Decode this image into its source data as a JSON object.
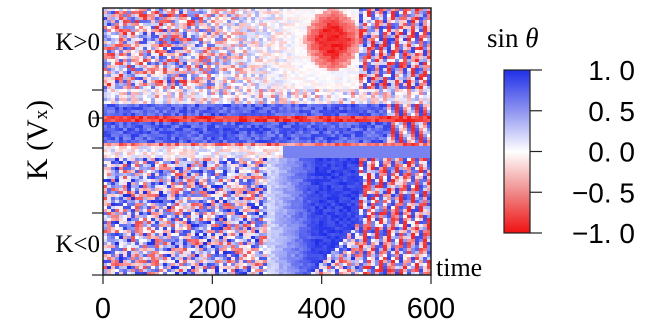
{
  "chart_data": {
    "type": "heatmap",
    "title": "",
    "xlabel": "time",
    "ylabel": "K (Vx)",
    "ylabel_main": "K (V",
    "ylabel_sub": "x",
    "ylabel_close": ")",
    "xlim": [
      0,
      600
    ],
    "x_ticks": [
      0,
      200,
      400,
      600
    ],
    "x_tick_labels": [
      "0",
      "200",
      "400",
      "600"
    ],
    "y_tick_labels": [
      "K>0",
      "0",
      "K<0"
    ],
    "colorbar": {
      "label": "sin θ",
      "label_fn": "sin ",
      "label_var": "θ",
      "range": [
        -1.0,
        1.0
      ],
      "ticks": [
        1.0,
        0.5,
        0.0,
        -0.5,
        -1.0
      ],
      "tick_labels": [
        "1. 0",
        "0. 5",
        "0. 0",
        "−0. 5",
        "−1. 0"
      ],
      "colors": {
        "max": "#1f2fe8",
        "mid": "#ffffff",
        "min": "#f01010"
      }
    },
    "regions": [
      {
        "description": "K>0 band early: mixed red/blue noise, fading to pale",
        "time": [
          0,
          380
        ],
        "value": 0.0
      },
      {
        "description": "K>0 band mid: strong red",
        "time": [
          380,
          470
        ],
        "value": -0.9
      },
      {
        "description": "K near 0: mostly blue with thin red line",
        "time": [
          0,
          600
        ],
        "value": 0.6
      },
      {
        "description": "K<0 band early: blue/red noise",
        "time": [
          0,
          300
        ],
        "value": 0.2
      },
      {
        "description": "K<0 band mid: strong blue",
        "time": [
          300,
          470
        ],
        "value": 0.9
      },
      {
        "description": "late times: oscillating red/blue",
        "time": [
          470,
          600
        ],
        "value": 0.0
      }
    ]
  }
}
